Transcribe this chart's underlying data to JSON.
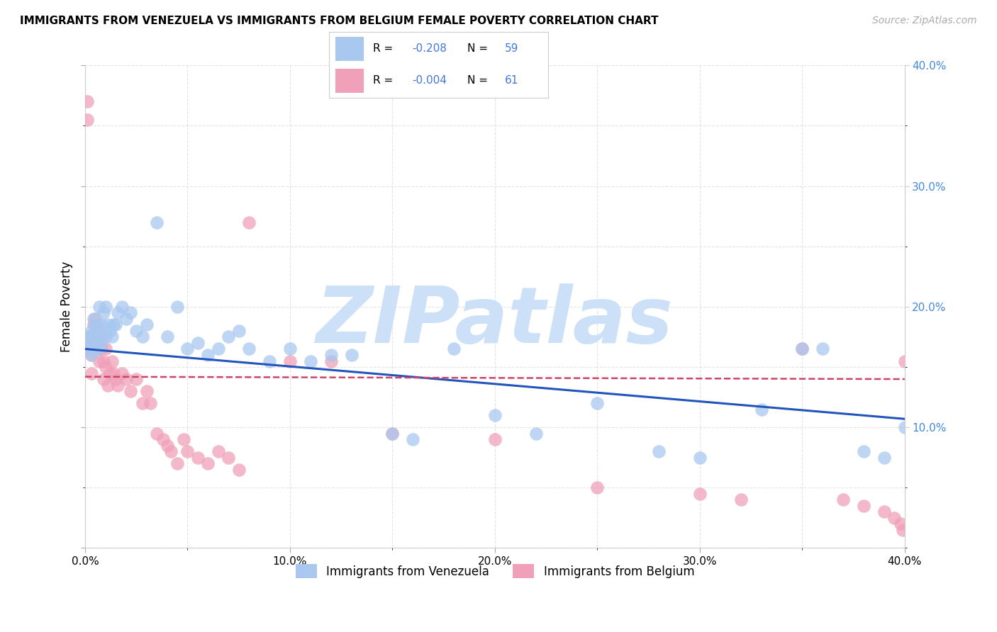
{
  "title": "IMMIGRANTS FROM VENEZUELA VS IMMIGRANTS FROM BELGIUM FEMALE POVERTY CORRELATION CHART",
  "source": "Source: ZipAtlas.com",
  "ylabel": "Female Poverty",
  "xlim": [
    0,
    0.4
  ],
  "ylim": [
    0,
    0.4
  ],
  "legend_labels": [
    "Immigrants from Venezuela",
    "Immigrants from Belgium"
  ],
  "legend_R": [
    "-0.208",
    "-0.004"
  ],
  "legend_N": [
    "59",
    "61"
  ],
  "blue_color": "#a8c8f0",
  "pink_color": "#f0a0b8",
  "blue_line_color": "#2255bb",
  "pink_line_color": "#cc4466",
  "watermark": "ZIPatlas",
  "watermark_color": "#cce0f8",
  "background_color": "#ffffff",
  "grid_color": "#dddddd",
  "venezuela_x": [
    0.001,
    0.002,
    0.002,
    0.003,
    0.003,
    0.004,
    0.004,
    0.005,
    0.005,
    0.006,
    0.006,
    0.007,
    0.007,
    0.008,
    0.008,
    0.009,
    0.01,
    0.01,
    0.011,
    0.012,
    0.013,
    0.014,
    0.015,
    0.016,
    0.018,
    0.02,
    0.022,
    0.025,
    0.028,
    0.03,
    0.035,
    0.04,
    0.045,
    0.05,
    0.055,
    0.06,
    0.065,
    0.07,
    0.075,
    0.08,
    0.09,
    0.1,
    0.11,
    0.12,
    0.13,
    0.15,
    0.16,
    0.18,
    0.2,
    0.22,
    0.25,
    0.28,
    0.3,
    0.33,
    0.35,
    0.36,
    0.38,
    0.39,
    0.4
  ],
  "venezuela_y": [
    0.17,
    0.165,
    0.175,
    0.18,
    0.16,
    0.175,
    0.19,
    0.17,
    0.185,
    0.18,
    0.175,
    0.165,
    0.2,
    0.185,
    0.17,
    0.195,
    0.175,
    0.2,
    0.185,
    0.18,
    0.175,
    0.185,
    0.185,
    0.195,
    0.2,
    0.19,
    0.195,
    0.18,
    0.175,
    0.185,
    0.27,
    0.175,
    0.2,
    0.165,
    0.17,
    0.16,
    0.165,
    0.175,
    0.18,
    0.165,
    0.155,
    0.165,
    0.155,
    0.16,
    0.16,
    0.095,
    0.09,
    0.165,
    0.11,
    0.095,
    0.12,
    0.08,
    0.075,
    0.115,
    0.165,
    0.165,
    0.08,
    0.075,
    0.1
  ],
  "belgium_x": [
    0.001,
    0.001,
    0.002,
    0.002,
    0.003,
    0.003,
    0.004,
    0.004,
    0.005,
    0.005,
    0.006,
    0.006,
    0.007,
    0.007,
    0.008,
    0.008,
    0.009,
    0.009,
    0.01,
    0.01,
    0.011,
    0.012,
    0.013,
    0.014,
    0.015,
    0.016,
    0.018,
    0.02,
    0.022,
    0.025,
    0.028,
    0.03,
    0.032,
    0.035,
    0.038,
    0.04,
    0.042,
    0.045,
    0.048,
    0.05,
    0.055,
    0.06,
    0.065,
    0.07,
    0.075,
    0.08,
    0.1,
    0.12,
    0.15,
    0.2,
    0.25,
    0.3,
    0.32,
    0.35,
    0.37,
    0.38,
    0.39,
    0.395,
    0.398,
    0.399,
    0.4
  ],
  "belgium_y": [
    0.37,
    0.355,
    0.165,
    0.175,
    0.145,
    0.16,
    0.185,
    0.175,
    0.19,
    0.185,
    0.185,
    0.175,
    0.155,
    0.165,
    0.175,
    0.165,
    0.155,
    0.14,
    0.15,
    0.165,
    0.135,
    0.145,
    0.155,
    0.145,
    0.14,
    0.135,
    0.145,
    0.14,
    0.13,
    0.14,
    0.12,
    0.13,
    0.12,
    0.095,
    0.09,
    0.085,
    0.08,
    0.07,
    0.09,
    0.08,
    0.075,
    0.07,
    0.08,
    0.075,
    0.065,
    0.27,
    0.155,
    0.155,
    0.095,
    0.09,
    0.05,
    0.045,
    0.04,
    0.165,
    0.04,
    0.035,
    0.03,
    0.025,
    0.02,
    0.015,
    0.155
  ],
  "vline_intercept": 0.165,
  "vline_slope": -0.145,
  "bline_intercept": 0.142,
  "bline_slope": -0.005
}
